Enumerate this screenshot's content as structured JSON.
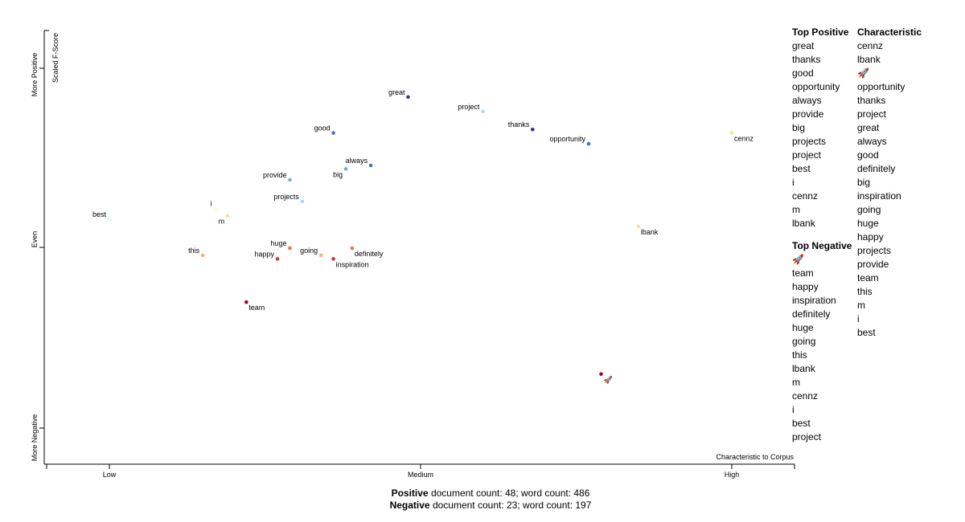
{
  "chart_data": {
    "type": "scatter",
    "y_axis_title": "Scaled F-Score",
    "x_axis_title": "Characteristic to Corpus",
    "y_side_labels": {
      "top": "More Positive",
      "middle": "Even",
      "bottom": "More Negative"
    },
    "x_ticks": [
      "Low",
      "Medium",
      "High"
    ],
    "xlim": [
      -0.2,
      1.2
    ],
    "ylim": [
      -0.2,
      1.0
    ],
    "colors": {
      "strong_positive": "#313695",
      "positive": "#4575b4",
      "mild_positive": "#74add1",
      "light_positive": "#abd9e9",
      "pale_positive": "#e0f3f8",
      "neutral": "#ffffbf",
      "pale_negative": "#fee090",
      "mild_negative": "#fdae61",
      "negative": "#f46d43",
      "strong_negative": "#d73027",
      "very_negative": "#a50026"
    },
    "points": [
      {
        "term": "great",
        "x": 0.48,
        "y": 0.92,
        "color": "#313695",
        "label_side": "left"
      },
      {
        "term": "project",
        "x": 0.6,
        "y": 0.88,
        "color": "#abd9e9",
        "label_side": "left"
      },
      {
        "term": "thanks",
        "x": 0.68,
        "y": 0.83,
        "color": "#313695",
        "label_side": "left"
      },
      {
        "term": "opportunity",
        "x": 0.77,
        "y": 0.79,
        "color": "#4575b4",
        "label_side": "left"
      },
      {
        "term": "good",
        "x": 0.36,
        "y": 0.82,
        "color": "#4575b4",
        "label_side": "left"
      },
      {
        "term": "cennz",
        "x": 1.0,
        "y": 0.82,
        "color": "#fee090",
        "label_side": "right-below"
      },
      {
        "term": "always",
        "x": 0.42,
        "y": 0.73,
        "color": "#4575b4",
        "label_side": "left"
      },
      {
        "term": "big",
        "x": 0.38,
        "y": 0.72,
        "color": "#74add1",
        "label_side": "left-below"
      },
      {
        "term": "provide",
        "x": 0.29,
        "y": 0.69,
        "color": "#74add1",
        "label_side": "left"
      },
      {
        "term": "projects",
        "x": 0.31,
        "y": 0.63,
        "color": "#abd9e9",
        "label_side": "left"
      },
      {
        "term": "best",
        "x": 0.0,
        "y": 0.58,
        "color": "#e0f3f8",
        "label_side": "left"
      },
      {
        "term": "i",
        "x": 0.17,
        "y": 0.61,
        "color": "#ffffbf",
        "label_side": "left"
      },
      {
        "term": "m",
        "x": 0.19,
        "y": 0.59,
        "color": "#fee090",
        "label_side": "left-below"
      },
      {
        "term": "lbank",
        "x": 0.85,
        "y": 0.56,
        "color": "#fee090",
        "label_side": "right-below"
      },
      {
        "term": "huge",
        "x": 0.29,
        "y": 0.5,
        "color": "#f46d43",
        "label_side": "left"
      },
      {
        "term": "going",
        "x": 0.34,
        "y": 0.48,
        "color": "#fdae61",
        "label_side": "left"
      },
      {
        "term": "definitely",
        "x": 0.39,
        "y": 0.5,
        "color": "#f46d43",
        "label_side": "right-below"
      },
      {
        "term": "happy",
        "x": 0.27,
        "y": 0.47,
        "color": "#d73027",
        "label_side": "left"
      },
      {
        "term": "inspiration",
        "x": 0.36,
        "y": 0.47,
        "color": "#d73027",
        "label_side": "right-below"
      },
      {
        "term": "this",
        "x": 0.15,
        "y": 0.48,
        "color": "#fdae61",
        "label_side": "left"
      },
      {
        "term": "team",
        "x": 0.22,
        "y": 0.35,
        "color": "#a50026",
        "label_side": "right-below"
      },
      {
        "term": "🚀",
        "x": 0.79,
        "y": 0.15,
        "color": "#a50026",
        "label_side": "right-below"
      }
    ]
  },
  "lists": {
    "top_positive": {
      "title": "Top Positive",
      "terms": [
        "great",
        "thanks",
        "good",
        "opportunity",
        "always",
        "provide",
        "big",
        "projects",
        "project",
        "best",
        "i",
        "cennz",
        "m",
        "lbank"
      ]
    },
    "top_negative": {
      "title": "Top Negative",
      "terms": [
        "🚀",
        "team",
        "happy",
        "inspiration",
        "definitely",
        "huge",
        "going",
        "this",
        "lbank",
        "m",
        "cennz",
        "i",
        "best",
        "project"
      ]
    },
    "characteristic": {
      "title": "Characteristic",
      "terms": [
        "cennz",
        "lbank",
        "🚀",
        "opportunity",
        "thanks",
        "project",
        "great",
        "always",
        "good",
        "definitely",
        "big",
        "inspiration",
        "going",
        "huge",
        "happy",
        "projects",
        "provide",
        "team",
        "this",
        "m",
        "i",
        "best"
      ]
    }
  },
  "footer": {
    "positive_label": "Positive",
    "positive_text": " document count: 48; word count: 486",
    "negative_label": "Negative",
    "negative_text": " document count: 23; word count: 197"
  }
}
